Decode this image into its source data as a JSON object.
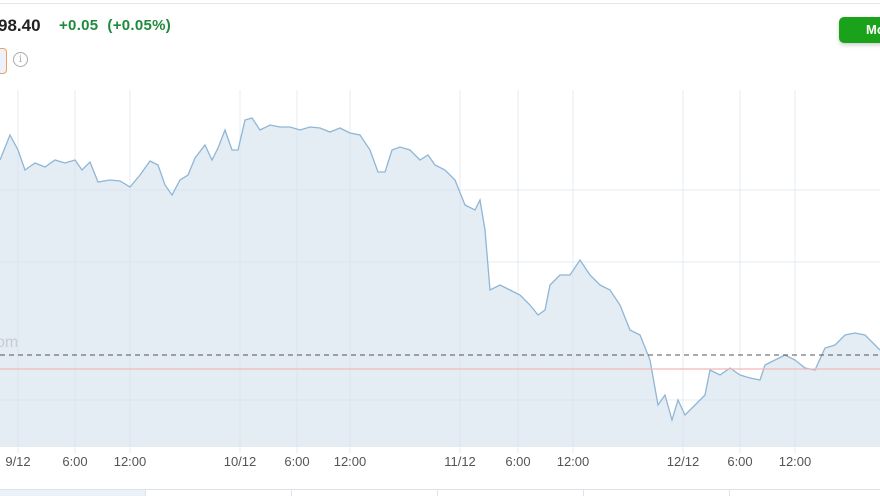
{
  "quote": {
    "price": "98.40",
    "change": "+0.05",
    "change_pct": "(+0.05%)",
    "change_color": "#1e8a3c"
  },
  "button": {
    "label": "Mo",
    "color": "#1aa31a"
  },
  "info_icon": "i",
  "watermark": "om",
  "chart": {
    "line_color": "#8fb6d6",
    "fill_color": "#e4ecf4",
    "previous_close_line": "dashed",
    "reference_line_color": "#f2b8b8",
    "x_ticks": [
      "9/12",
      "6:00",
      "12:00",
      "10/12",
      "6:00",
      "12:00",
      "11/12",
      "6:00",
      "12:00",
      "12/12",
      "6:00",
      "12:00"
    ]
  }
}
